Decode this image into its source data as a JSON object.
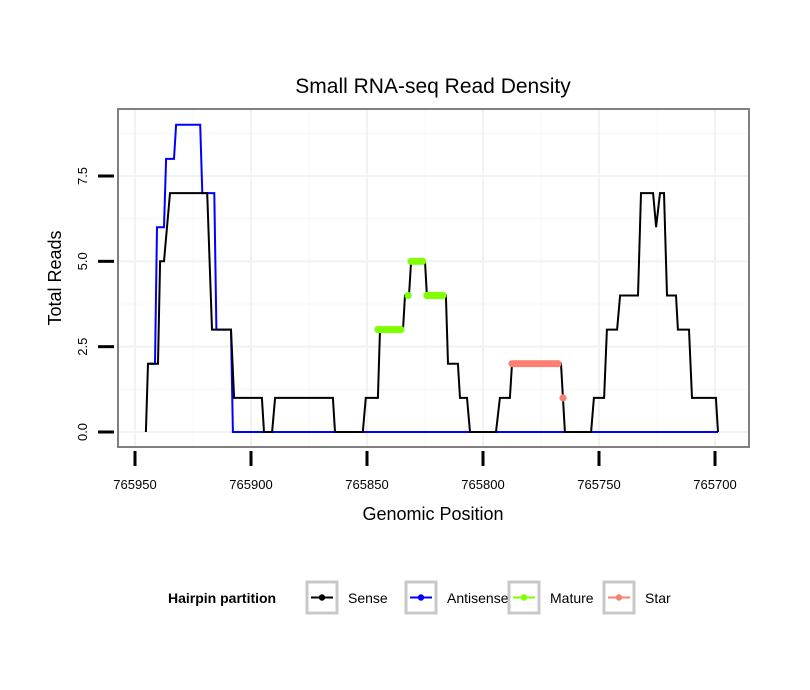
{
  "chart_data": {
    "type": "line",
    "title": "Small RNA-seq Read Density",
    "xlabel": "Genomic Position",
    "ylabel": "Total Reads",
    "xlim": [
      765955,
      765683
    ],
    "x_reversed": true,
    "ylim": [
      -0.45,
      9.5
    ],
    "x_ticks": [
      765950,
      765900,
      765850,
      765800,
      765750,
      765700
    ],
    "x_tick_labels": [
      "765950",
      "765900",
      "765850",
      "765800",
      "765750",
      "765700"
    ],
    "y_ticks": [
      0.0,
      2.5,
      5.0,
      7.5
    ],
    "y_tick_labels": [
      "0.0",
      "2.5",
      "5.0",
      "7.5"
    ],
    "grid": true,
    "legend": {
      "title": "Hairpin partition",
      "position": "bottom",
      "entries": [
        {
          "name": "Sense",
          "color": "#000000"
        },
        {
          "name": "Antisense",
          "color": "#0000ff"
        },
        {
          "name": "Mature",
          "color": "#7fff00"
        },
        {
          "name": "Star",
          "color": "#fa8072"
        }
      ]
    },
    "series": [
      {
        "name": "Sense",
        "color": "#000000",
        "style": "step-line",
        "points": [
          [
            765945.3,
            0
          ],
          [
            765944.4,
            2
          ],
          [
            765940.1,
            2
          ],
          [
            765939.2,
            5
          ],
          [
            765937.5,
            5
          ],
          [
            765934.9,
            7
          ],
          [
            765918.9,
            7
          ],
          [
            765916.8,
            3
          ],
          [
            765908.6,
            3
          ],
          [
            765907.3,
            1
          ],
          [
            765895.3,
            1
          ],
          [
            765894.4,
            0
          ],
          [
            765890.9,
            0
          ],
          [
            765889.6,
            1
          ],
          [
            765864.7,
            1
          ],
          [
            765863.8,
            0
          ],
          [
            765851.8,
            0
          ],
          [
            765850.5,
            1
          ],
          [
            765845.3,
            1
          ],
          [
            765844.4,
            3
          ],
          [
            765834.5,
            3
          ],
          [
            765833.6,
            4
          ],
          [
            765831.9,
            4
          ],
          [
            765831.0,
            5
          ],
          [
            765825.0,
            5
          ],
          [
            765824.2,
            4
          ],
          [
            765816.0,
            4
          ],
          [
            765815.1,
            2
          ],
          [
            765810.8,
            2
          ],
          [
            765809.9,
            1
          ],
          [
            765806.9,
            1
          ],
          [
            765805.6,
            0
          ],
          [
            765794.4,
            0
          ],
          [
            765792.7,
            1
          ],
          [
            765788.4,
            1
          ],
          [
            765787.5,
            2
          ],
          [
            765766.4,
            2
          ],
          [
            765764.7,
            0
          ],
          [
            765753.4,
            0
          ],
          [
            765752.2,
            1
          ],
          [
            765747.8,
            1
          ],
          [
            765746.6,
            3
          ],
          [
            765742.2,
            3
          ],
          [
            765740.9,
            4
          ],
          [
            765733.2,
            4
          ],
          [
            765731.9,
            7
          ],
          [
            765726.7,
            7
          ],
          [
            765725.4,
            6
          ],
          [
            765723.7,
            7
          ],
          [
            765722.0,
            7
          ],
          [
            765720.7,
            4
          ],
          [
            765716.8,
            4
          ],
          [
            765716.0,
            3
          ],
          [
            765711.2,
            3
          ],
          [
            765709.9,
            1
          ],
          [
            765699.6,
            1
          ],
          [
            765698.7,
            0
          ]
        ]
      },
      {
        "name": "Antisense",
        "color": "#0000ff",
        "style": "step-line",
        "points": [
          [
            765944.4,
            2
          ],
          [
            765941.4,
            2
          ],
          [
            765940.5,
            6
          ],
          [
            765937.5,
            6
          ],
          [
            765936.6,
            8
          ],
          [
            765933.2,
            8
          ],
          [
            765932.3,
            9
          ],
          [
            765921.9,
            9
          ],
          [
            765921.0,
            7
          ],
          [
            765915.8,
            7
          ],
          [
            765914.9,
            3
          ],
          [
            765908.6,
            3
          ],
          [
            765907.8,
            0
          ],
          [
            765698.7,
            0
          ]
        ]
      },
      {
        "name": "Mature",
        "color": "#7fff00",
        "style": "points",
        "segments": [
          {
            "from": 765845.3,
            "to": 765834.5,
            "value": 3
          },
          {
            "from": 765832.3,
            "to": 765831.4,
            "value": 4
          },
          {
            "from": 765831.0,
            "to": 765825.4,
            "value": 5
          },
          {
            "from": 765824.2,
            "to": 765816.4,
            "value": 4
          }
        ]
      },
      {
        "name": "Star",
        "color": "#fa8072",
        "style": "points",
        "segments": [
          {
            "from": 765787.5,
            "to": 765766.8,
            "value": 2
          },
          {
            "from": 765765.5,
            "to": 765765.5,
            "value": 1
          }
        ]
      }
    ]
  }
}
